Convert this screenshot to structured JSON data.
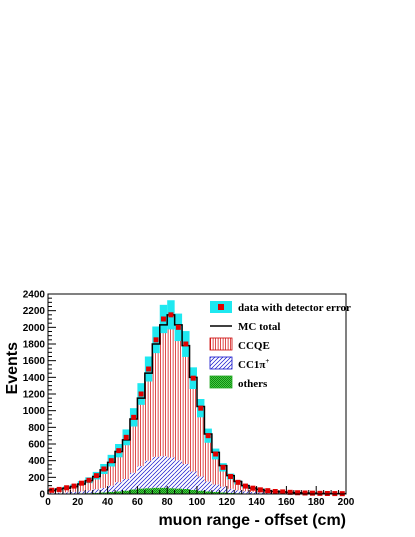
{
  "chart_data": {
    "type": "histogram",
    "xlabel": "muon range - offset (cm)",
    "ylabel": "Events",
    "xlim": [
      0,
      200
    ],
    "ylim": [
      0,
      2400
    ],
    "xticks": [
      "0",
      "20",
      "40",
      "60",
      "80",
      "100",
      "120",
      "140",
      "160",
      "180",
      "200"
    ],
    "yticks": [
      "0",
      "200",
      "400",
      "600",
      "800",
      "1000",
      "1200",
      "1400",
      "1600",
      "1800",
      "2000",
      "2200",
      "2400"
    ],
    "bin_width": 5,
    "bin_edges_start": 0,
    "legend_position": "top-right",
    "legend": [
      {
        "key": "data",
        "label": "data with detector error"
      },
      {
        "key": "mc",
        "label": "MC total"
      },
      {
        "key": "ccqe",
        "label": "CCQE"
      },
      {
        "key": "cc1pi",
        "label": "CC1π",
        "superscript": "+"
      },
      {
        "key": "others",
        "label": "others"
      }
    ],
    "series": [
      {
        "key": "mc",
        "name": "MC total",
        "values": [
          40,
          60,
          70,
          90,
          120,
          160,
          210,
          290,
          380,
          510,
          650,
          900,
          1150,
          1450,
          1800,
          2030,
          2150,
          2030,
          1780,
          1400,
          1050,
          720,
          500,
          340,
          220,
          150,
          100,
          70,
          55,
          40,
          30,
          25,
          20,
          15,
          12,
          10,
          8,
          6,
          5,
          4
        ]
      },
      {
        "key": "data",
        "name": "data with detector error",
        "values": [
          45,
          55,
          75,
          95,
          130,
          165,
          220,
          300,
          400,
          520,
          680,
          920,
          1200,
          1500,
          1850,
          2100,
          2150,
          2000,
          1800,
          1390,
          1030,
          700,
          480,
          320,
          210,
          140,
          95,
          70,
          50,
          40,
          30,
          25,
          20,
          15,
          12,
          10,
          8,
          6,
          5,
          4
        ],
        "errors": [
          10,
          12,
          15,
          20,
          25,
          35,
          45,
          60,
          70,
          80,
          95,
          110,
          130,
          150,
          160,
          170,
          175,
          165,
          155,
          130,
          110,
          85,
          65,
          50,
          35,
          25,
          18,
          14,
          10,
          8,
          6,
          5,
          4,
          3,
          3,
          2,
          2,
          2,
          2,
          2
        ]
      },
      {
        "key": "ccqe",
        "name": "CCQE",
        "values": [
          25,
          38,
          45,
          58,
          78,
          105,
          140,
          195,
          260,
          350,
          440,
          610,
          800,
          1040,
          1310,
          1500,
          1720,
          1700,
          1450,
          1100,
          800,
          520,
          330,
          200,
          120,
          75,
          48,
          32,
          24,
          17,
          13,
          10,
          8,
          6,
          5,
          4,
          3,
          3,
          2,
          2
        ]
      },
      {
        "key": "cc1pi",
        "name": "CC1π+",
        "values": [
          8,
          12,
          15,
          20,
          25,
          32,
          42,
          55,
          75,
          110,
          140,
          200,
          270,
          330,
          370,
          380,
          370,
          340,
          300,
          220,
          170,
          120,
          90,
          70,
          50,
          35,
          25,
          18,
          14,
          10,
          8,
          6,
          5,
          4,
          3,
          3,
          2,
          2,
          1,
          1
        ]
      },
      {
        "key": "others",
        "name": "others",
        "values": [
          3,
          4,
          5,
          6,
          8,
          10,
          14,
          18,
          25,
          32,
          40,
          55,
          65,
          70,
          75,
          75,
          70,
          65,
          60,
          50,
          40,
          30,
          24,
          18,
          13,
          10,
          8,
          6,
          5,
          4,
          3,
          3,
          2,
          2,
          2,
          1,
          1,
          1,
          1,
          1
        ]
      }
    ],
    "colors": {
      "error_band": "#1fe8f0",
      "data_marker": "#e00000",
      "mc_line": "#000000",
      "ccqe": "#cc0000",
      "cc1pi": "#1010cc",
      "others": "#22bb22"
    },
    "grid": false
  }
}
